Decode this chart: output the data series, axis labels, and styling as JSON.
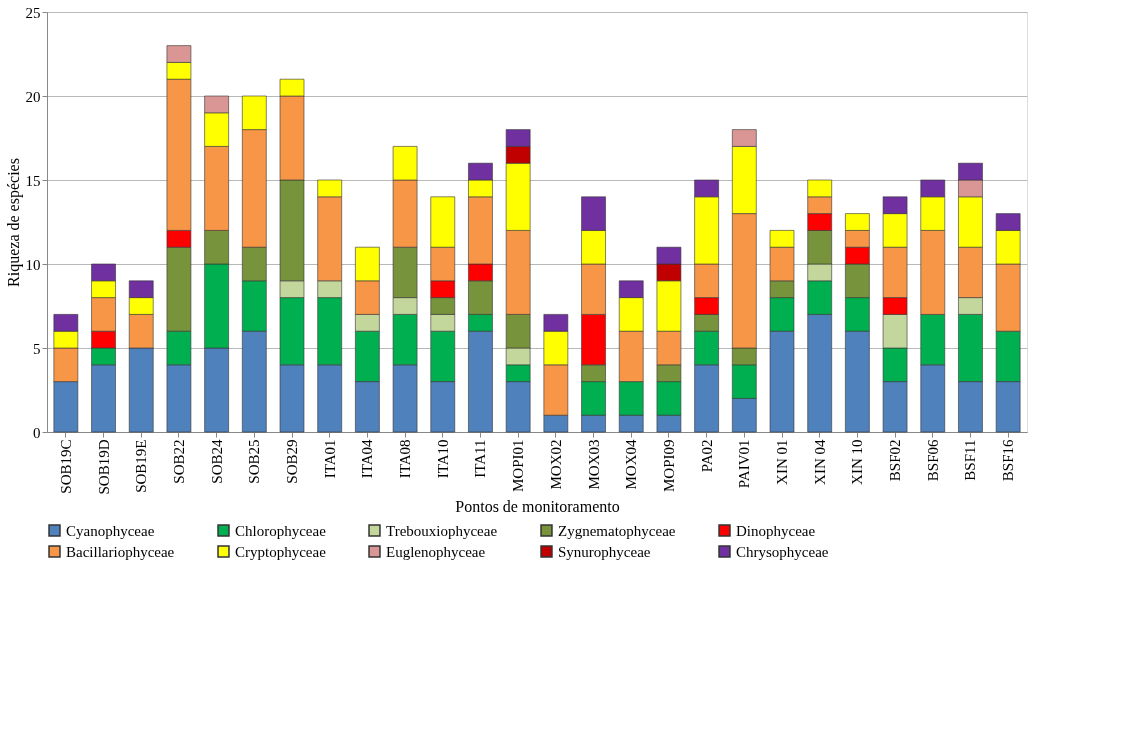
{
  "chart_data": {
    "type": "bar",
    "stacked": true,
    "xlabel": "Pontos de monitoramento",
    "ylabel": "Riqueza de espécies",
    "categories": [
      "SOB19C",
      "SOB19D",
      "SOB19E",
      "SOB22",
      "SOB24",
      "SOB25",
      "SOB29",
      "ITA01",
      "ITA04",
      "ITA08",
      "ITA10",
      "ITA11",
      "MOPI01",
      "MOX02",
      "MOX03",
      "MOX04",
      "MOPI09",
      "PA02",
      "PAIV01",
      "XIN 01",
      "XIN 04",
      "XIN 10",
      "BSF02",
      "BSF06",
      "BSF11",
      "BSF16"
    ],
    "ylim": [
      0,
      25
    ],
    "yticks": [
      0,
      5,
      10,
      15,
      20,
      25
    ],
    "grid": "y",
    "legend": "bottom",
    "series": [
      {
        "name": "Cyanophyceae",
        "color": "#4f81bd",
        "values": [
          3,
          4,
          5,
          4,
          5,
          6,
          4,
          4,
          3,
          4,
          3,
          6,
          3,
          1,
          1,
          1,
          1,
          4,
          2,
          6,
          7,
          6,
          3,
          4,
          3,
          3
        ]
      },
      {
        "name": "Chlorophyceae",
        "color": "#00b050",
        "values": [
          null,
          1,
          null,
          2,
          5,
          3,
          4,
          4,
          3,
          3,
          3,
          1,
          1,
          null,
          2,
          2,
          2,
          2,
          2,
          2,
          2,
          2,
          2,
          3,
          4,
          3
        ]
      },
      {
        "name": "Trebouxiophyceae",
        "color": "#c3d69b",
        "values": [
          null,
          null,
          null,
          null,
          null,
          null,
          1,
          1,
          1,
          1,
          1,
          null,
          1,
          null,
          null,
          null,
          null,
          null,
          null,
          null,
          1,
          null,
          2,
          null,
          1,
          null
        ]
      },
      {
        "name": "Zygnematophyceae",
        "color": "#77933c",
        "values": [
          null,
          null,
          null,
          5,
          2,
          2,
          6,
          null,
          null,
          3,
          1,
          2,
          2,
          null,
          1,
          null,
          1,
          1,
          1,
          1,
          2,
          2,
          null,
          null,
          null,
          null
        ]
      },
      {
        "name": "Dinophyceae",
        "color": "#ff0000",
        "values": [
          null,
          1,
          null,
          1,
          null,
          null,
          null,
          null,
          null,
          null,
          1,
          1,
          null,
          null,
          3,
          null,
          null,
          1,
          null,
          null,
          1,
          1,
          1,
          null,
          null,
          null
        ]
      },
      {
        "name": "Bacillariophyceae",
        "color": "#f79646",
        "values": [
          2,
          2,
          2,
          9,
          5,
          7,
          5,
          5,
          2,
          4,
          2,
          4,
          5,
          3,
          3,
          3,
          2,
          2,
          8,
          2,
          1,
          1,
          3,
          5,
          3,
          4
        ]
      },
      {
        "name": "Cryptophyceae",
        "color": "#ffff00",
        "values": [
          1,
          1,
          1,
          1,
          2,
          2,
          1,
          1,
          2,
          2,
          3,
          1,
          4,
          2,
          2,
          2,
          3,
          4,
          4,
          1,
          1,
          1,
          2,
          2,
          3,
          2
        ]
      },
      {
        "name": "Euglenophyceae",
        "color": "#d99694",
        "values": [
          null,
          null,
          null,
          1,
          1,
          null,
          null,
          null,
          null,
          null,
          null,
          null,
          null,
          null,
          null,
          null,
          null,
          null,
          1,
          null,
          null,
          null,
          null,
          null,
          1,
          null
        ]
      },
      {
        "name": "Synurophyceae",
        "color": "#c00000",
        "values": [
          null,
          null,
          null,
          null,
          null,
          null,
          null,
          null,
          null,
          null,
          null,
          null,
          1,
          null,
          null,
          null,
          1,
          null,
          null,
          null,
          null,
          null,
          null,
          null,
          null,
          null
        ]
      },
      {
        "name": "Chrysophyceae",
        "color": "#7030a0",
        "values": [
          1,
          1,
          1,
          null,
          null,
          null,
          null,
          null,
          null,
          null,
          null,
          1,
          1,
          1,
          2,
          1,
          1,
          1,
          null,
          null,
          null,
          null,
          1,
          1,
          1,
          1
        ]
      }
    ]
  }
}
